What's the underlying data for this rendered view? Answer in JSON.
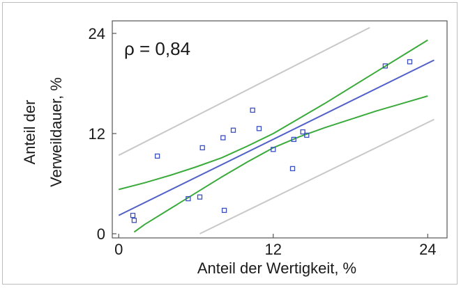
{
  "chart_data": {
    "type": "scatter",
    "annotation": "ρ = 0,84",
    "xlabel": "Anteil der Wertigkeit, %",
    "ylabel_lines": [
      "Anteil der",
      "Verweildauer, %"
    ],
    "xlim": [
      -0.5,
      25.5
    ],
    "ylim": [
      -0.5,
      25.5
    ],
    "xticks": [
      0,
      12,
      24
    ],
    "yticks": [
      0,
      12,
      24
    ],
    "x_tick_labels": [
      "0",
      "12",
      "24"
    ],
    "y_tick_labels": [
      "0",
      "12",
      "24"
    ],
    "grid": false,
    "points": [
      {
        "x": 1.1,
        "y": 2.2
      },
      {
        "x": 1.2,
        "y": 1.6
      },
      {
        "x": 3.0,
        "y": 9.3
      },
      {
        "x": 5.4,
        "y": 4.2
      },
      {
        "x": 6.3,
        "y": 4.4
      },
      {
        "x": 6.5,
        "y": 10.3
      },
      {
        "x": 8.1,
        "y": 11.5
      },
      {
        "x": 8.2,
        "y": 2.8
      },
      {
        "x": 8.9,
        "y": 12.4
      },
      {
        "x": 10.4,
        "y": 14.8
      },
      {
        "x": 10.9,
        "y": 12.6
      },
      {
        "x": 12.0,
        "y": 10.1
      },
      {
        "x": 13.5,
        "y": 7.8
      },
      {
        "x": 13.6,
        "y": 11.3
      },
      {
        "x": 14.3,
        "y": 12.2
      },
      {
        "x": 14.6,
        "y": 11.8
      },
      {
        "x": 20.7,
        "y": 20.1
      },
      {
        "x": 22.6,
        "y": 20.6
      }
    ],
    "regression_line": {
      "x": [
        0,
        24.5
      ],
      "y": [
        2.2,
        20.8
      ]
    },
    "confidence_band_upper": {
      "x": [
        0,
        2,
        4,
        6,
        8,
        10,
        12,
        14,
        16,
        18,
        20,
        22,
        24
      ],
      "y": [
        5.3,
        6.1,
        7.0,
        8.0,
        9.1,
        10.5,
        12.0,
        13.8,
        15.6,
        17.5,
        19.4,
        21.3,
        23.2
      ]
    },
    "confidence_band_lower": {
      "x": [
        1.2,
        2,
        4,
        6,
        8,
        10,
        12,
        14,
        16,
        18,
        20,
        22,
        24
      ],
      "y": [
        0.2,
        1.1,
        3.0,
        4.9,
        6.8,
        8.6,
        10.3,
        11.6,
        12.7,
        13.7,
        14.7,
        15.6,
        16.5
      ]
    },
    "prediction_band_upper": {
      "x": [
        0,
        19.5
      ],
      "y": [
        9.4,
        24.7
      ]
    },
    "prediction_band_lower": {
      "x": [
        6.3,
        24.5
      ],
      "y": [
        0.0,
        13.7
      ]
    },
    "colors": {
      "points": "#3a4fc0",
      "regression": "#5060c8",
      "confidence": "#3aaa3a",
      "prediction": "#c8c8c8",
      "axis": "#555555"
    }
  }
}
